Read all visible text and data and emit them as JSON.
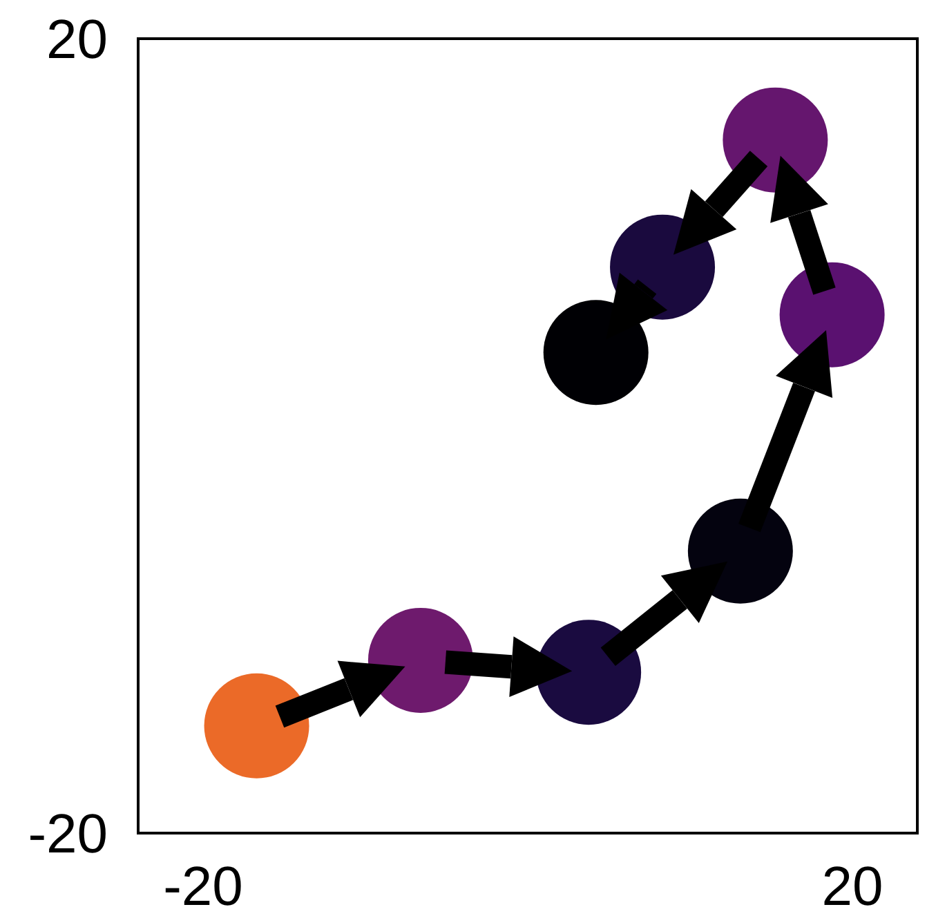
{
  "chart_data": {
    "type": "scatter",
    "x": [
      -16.7,
      -6.6,
      3.75,
      13.1,
      18.75,
      15.25,
      8.3,
      4.2
    ],
    "values": [
      -14.6,
      -11.3,
      -11.9,
      -5.8,
      6.1,
      14.9,
      8.5,
      4.2
    ],
    "colors": [
      "#eb6a28",
      "#6e1a6d",
      "#1a0b40",
      "#04030f",
      "#5a1170",
      "#65166e",
      "#1a0a3e",
      "#000004"
    ],
    "xlim": [
      -24,
      24
    ],
    "ylim": [
      -20,
      20
    ],
    "xticks": [
      -20,
      20
    ],
    "yticks": [
      -20,
      20
    ],
    "marker": "circle"
  }
}
